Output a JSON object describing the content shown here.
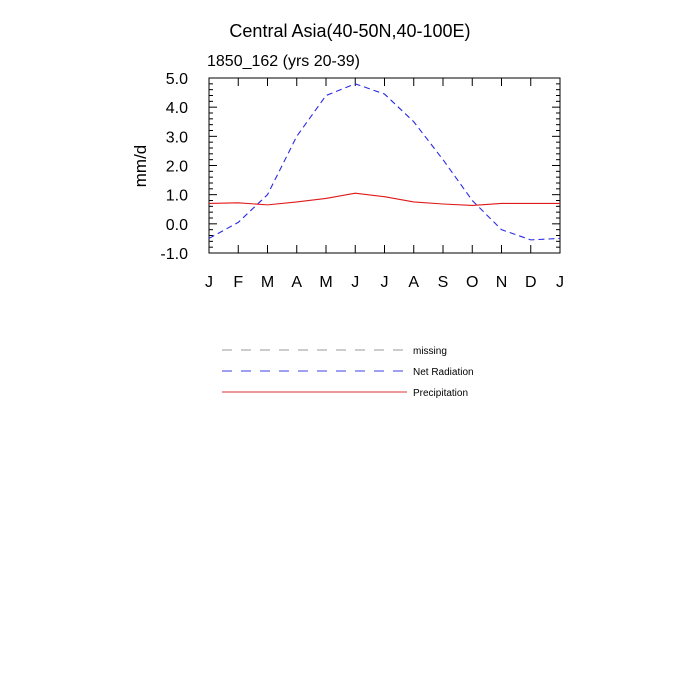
{
  "chart_data": {
    "type": "line",
    "title": "Central Asia(40-50N,40-100E)",
    "subtitle": "1850_162 (yrs 20-39)",
    "ylabel": "mm/d",
    "xlabel": "",
    "categories": [
      "J",
      "F",
      "M",
      "A",
      "M",
      "J",
      "J",
      "A",
      "S",
      "O",
      "N",
      "D",
      "J"
    ],
    "ylim": [
      -1.0,
      5.0
    ],
    "yticks": [
      -1.0,
      0.0,
      1.0,
      2.0,
      3.0,
      4.0,
      5.0
    ],
    "ytick_labels": [
      "-1.0",
      "0.0",
      "1.0",
      "2.0",
      "3.0",
      "4.0",
      "5.0"
    ],
    "grid": false,
    "legend_position": "below",
    "legend": [
      {
        "name": "missing",
        "color": "#999999",
        "dash": "dashed"
      },
      {
        "name": "Net Radiation",
        "color": "#4040e0",
        "dash": "dashed"
      },
      {
        "name": "Precipitation",
        "color": "#e03030",
        "dash": "solid"
      }
    ],
    "series": [
      {
        "name": "Net Radiation",
        "color": "#2a2ae6",
        "dash": "dashed",
        "values": [
          -0.5,
          0.05,
          1.0,
          3.0,
          4.4,
          4.8,
          4.45,
          3.5,
          2.2,
          0.8,
          -0.2,
          -0.55,
          -0.5
        ]
      },
      {
        "name": "Precipitation",
        "color": "#e01818",
        "dash": "solid",
        "values": [
          0.7,
          0.72,
          0.65,
          0.75,
          0.87,
          1.05,
          0.93,
          0.75,
          0.68,
          0.63,
          0.7,
          0.7,
          0.7
        ]
      }
    ]
  }
}
